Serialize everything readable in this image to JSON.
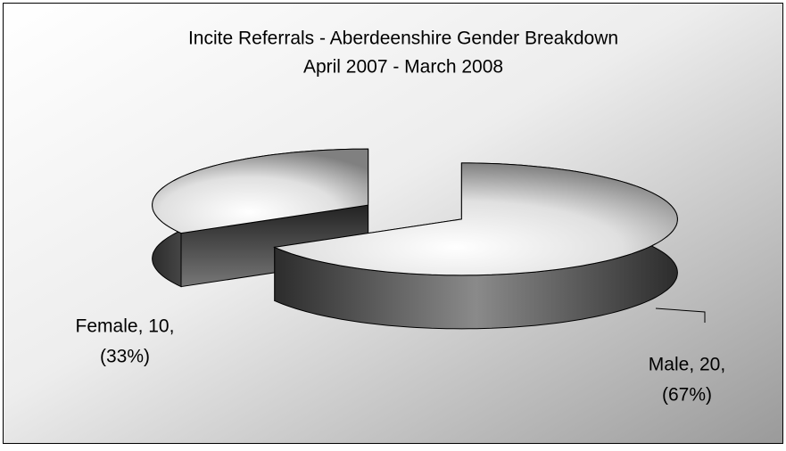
{
  "chart_data": {
    "type": "pie3d",
    "title": "Incite Referrals - Aberdeenshire Gender Breakdown",
    "subtitle": "April 2007 - March 2008",
    "values": [
      10,
      20
    ],
    "value_labels": [
      [
        "Female, 10,",
        "(33%)"
      ],
      [
        "Male, 20,",
        "(67%)"
      ]
    ],
    "colors": [
      "#e8e8e8",
      "#b0b0b0"
    ]
  }
}
